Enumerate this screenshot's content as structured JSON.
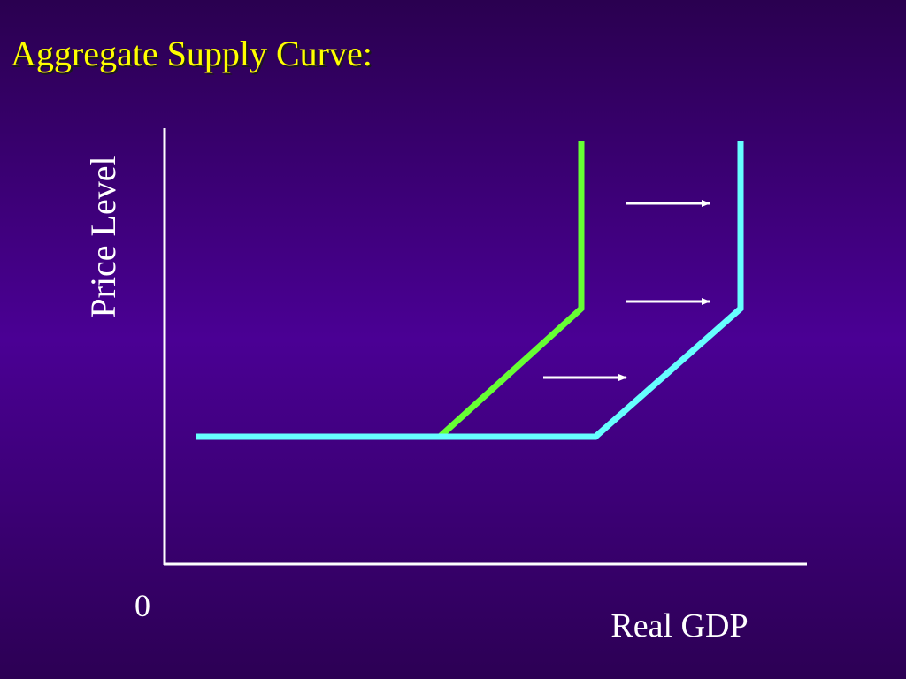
{
  "title": "Aggregate Supply Curve:",
  "axes": {
    "y_label": "Price Level",
    "origin": "0",
    "x_label": "Real GDP"
  }
}
